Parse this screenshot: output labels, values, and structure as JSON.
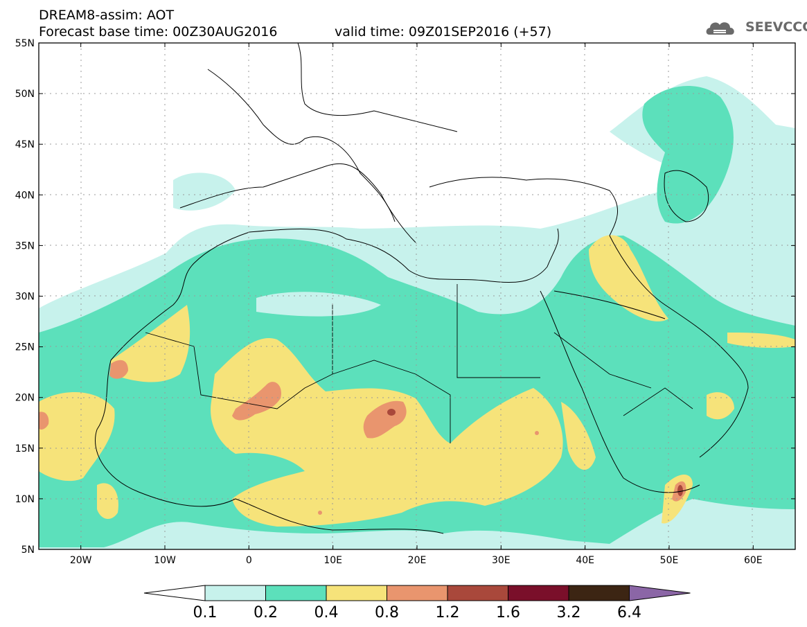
{
  "header": {
    "title": "DREAM8-assim: AOT",
    "base_time": "Forecast base time: 00Z30AUG2016",
    "valid_time": "valid time: 09Z01SEP2016 (+57)",
    "logo_text": "SEEVCCC"
  },
  "map": {
    "lat_labels": [
      "55N",
      "50N",
      "45N",
      "40N",
      "35N",
      "30N",
      "25N",
      "20N",
      "15N",
      "10N",
      "5N"
    ],
    "lon_labels": [
      "20W",
      "10W",
      "0",
      "10E",
      "20E",
      "30E",
      "40E",
      "50E",
      "60E"
    ],
    "lon_range": [
      -25,
      65
    ],
    "lat_range": [
      5,
      55
    ]
  },
  "colorbar": {
    "labels": [
      "0.1",
      "0.2",
      "0.4",
      "0.8",
      "1.2",
      "1.6",
      "3.2",
      "6.4"
    ],
    "colors": [
      "#ffffff",
      "#c7f2ec",
      "#5ce0bb",
      "#f6e37a",
      "#e9956e",
      "#a9483b",
      "#7a0f2a",
      "#3c2513",
      "#8b66a6"
    ],
    "outline_color": "#000000"
  },
  "colors": {
    "level1": "#c7f2ec",
    "level2": "#5ce0bb",
    "level3": "#f6e37a",
    "level4": "#e9956e",
    "level5": "#a9483b",
    "grid": "#9a9a9a"
  }
}
